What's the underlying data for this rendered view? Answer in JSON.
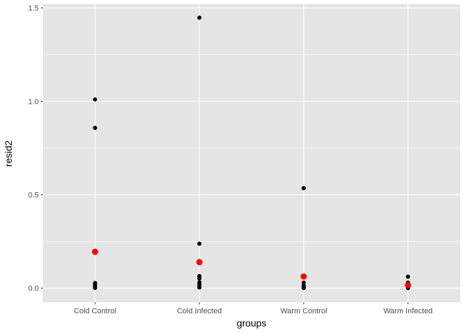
{
  "chart_data": {
    "type": "scatter",
    "xlabel": "groups",
    "ylabel": "resid2",
    "categories": [
      "Cold Control",
      "Cold Infected",
      "Warm Control",
      "Warm Infected"
    ],
    "ylim": [
      -0.075,
      1.52
    ],
    "yticks": [
      0.0,
      0.5,
      1.0,
      1.5
    ],
    "ytick_labels": [
      "0.0",
      "0.5",
      "1.0",
      "1.5"
    ],
    "grid": true,
    "legend": "none",
    "colors": {
      "panel_background": "#e5e5e5",
      "grid": "#ffffff",
      "points": "#000000",
      "means": "#ff0000"
    },
    "series": [
      {
        "values": [
          {
            "x": "Cold Control",
            "y": 1.01
          },
          {
            "x": "Cold Control",
            "y": 0.858
          },
          {
            "x": "Cold Control",
            "y": 0.028
          },
          {
            "x": "Cold Control",
            "y": 0.018
          },
          {
            "x": "Cold Control",
            "y": 0.008
          },
          {
            "x": "Cold Control",
            "y": 0.002
          },
          {
            "x": "Cold Infected",
            "y": 1.448
          },
          {
            "x": "Cold Infected",
            "y": 0.238
          },
          {
            "x": "Cold Infected",
            "y": 0.065
          },
          {
            "x": "Cold Infected",
            "y": 0.052
          },
          {
            "x": "Cold Infected",
            "y": 0.032
          },
          {
            "x": "Cold Infected",
            "y": 0.022
          },
          {
            "x": "Cold Infected",
            "y": 0.012
          },
          {
            "x": "Cold Infected",
            "y": 0.004
          },
          {
            "x": "Warm Control",
            "y": 0.535
          },
          {
            "x": "Warm Control",
            "y": 0.03
          },
          {
            "x": "Warm Control",
            "y": 0.015
          },
          {
            "x": "Warm Control",
            "y": 0.006
          },
          {
            "x": "Warm Control",
            "y": 0.001
          },
          {
            "x": "Warm Infected",
            "y": 0.062
          },
          {
            "x": "Warm Infected",
            "y": 0.03
          },
          {
            "x": "Warm Infected",
            "y": 0.012
          },
          {
            "x": "Warm Infected",
            "y": 0.005
          },
          {
            "x": "Warm Infected",
            "y": 0.001
          }
        ]
      },
      {
        "values": [
          {
            "x": "Cold Control",
            "y": 0.195
          },
          {
            "x": "Cold Infected",
            "y": 0.14
          },
          {
            "x": "Warm Control",
            "y": 0.063
          },
          {
            "x": "Warm Infected",
            "y": 0.017
          }
        ]
      }
    ]
  }
}
